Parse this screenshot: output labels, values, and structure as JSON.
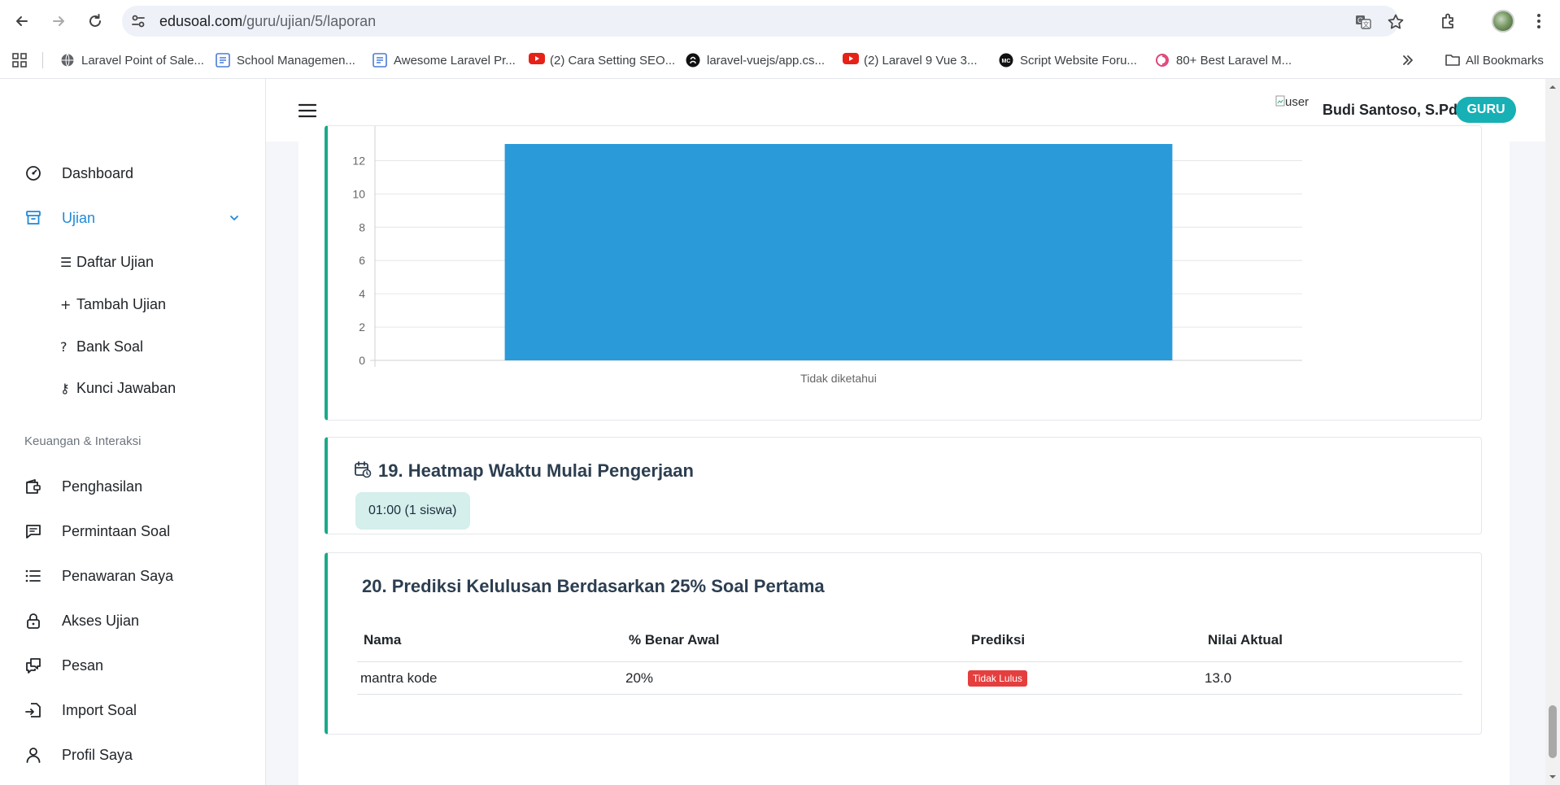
{
  "browser": {
    "url_host": "edusoal.com",
    "url_path": "/guru/ujian/5/laporan",
    "bookmarks": [
      {
        "label": "Laravel Point of Sale...",
        "icon": "globe-icon",
        "color": "#5f6368"
      },
      {
        "label": "School Managemen...",
        "icon": "app-icon",
        "color": "#4a7bd8"
      },
      {
        "label": "Awesome Laravel Pr...",
        "icon": "app-icon",
        "color": "#4a7bd8"
      },
      {
        "label": "(2) Cara Setting SEO...",
        "icon": "youtube-icon",
        "color": "#e62117"
      },
      {
        "label": "laravel-vuejs/app.cs...",
        "icon": "github-icon",
        "color": "#111111"
      },
      {
        "label": "(2) Laravel 9 Vue 3...",
        "icon": "youtube-icon",
        "color": "#e62117"
      },
      {
        "label": "Script Website Foru...",
        "icon": "mc-icon",
        "color": "#111111"
      },
      {
        "label": "80+ Best Laravel M...",
        "icon": "swirl-icon",
        "color": "#e0457b"
      }
    ],
    "all_bookmarks_label": "All Bookmarks"
  },
  "sidebar": {
    "items": [
      {
        "label": "Dashboard",
        "icon": "gauge-icon"
      },
      {
        "label": "Ujian",
        "icon": "archive-icon"
      }
    ],
    "sub_items": [
      {
        "label": "Daftar Ujian",
        "glyph": "☰"
      },
      {
        "label": "Tambah Ujian",
        "glyph": "+"
      },
      {
        "label": "Bank Soal",
        "glyph": "?"
      },
      {
        "label": "Kunci Jawaban",
        "glyph": "⚷"
      }
    ],
    "section_heading": "Keuangan & Interaksi",
    "section_items": [
      {
        "label": "Penghasilan",
        "icon": "wallet-icon"
      },
      {
        "label": "Permintaan Soal",
        "icon": "chat-icon"
      },
      {
        "label": "Penawaran Saya",
        "icon": "list-icon"
      },
      {
        "label": "Akses Ujian",
        "icon": "lock-icon"
      },
      {
        "label": "Pesan",
        "icon": "messages-icon"
      },
      {
        "label": "Import Soal",
        "icon": "import-icon"
      },
      {
        "label": "Profil Saya",
        "icon": "user-icon"
      }
    ]
  },
  "header": {
    "avatar_alt": "user",
    "user_name": "Budi Santoso, S.Pd",
    "role_badge": "GURU"
  },
  "chart_data": {
    "type": "bar",
    "categories": [
      "Tidak diketahui"
    ],
    "values": [
      13
    ],
    "ylim": [
      0,
      13
    ],
    "yticks": [
      0,
      2,
      4,
      6,
      8,
      10,
      12
    ],
    "grid": true,
    "bar_color": "#2a9ad9"
  },
  "heatmap": {
    "title": "19. Heatmap Waktu Mulai Pengerjaan",
    "chips": [
      "01:00 (1 siswa)"
    ]
  },
  "prediction": {
    "title": "20. Prediksi Kelulusan Berdasarkan 25% Soal Pertama",
    "columns": [
      "Nama",
      "% Benar Awal",
      "Prediksi",
      "Nilai Aktual"
    ],
    "rows": [
      {
        "nama": "mantra kode",
        "benar": "20%",
        "prediksi": "Tidak Lulus",
        "nilai": "13.0"
      }
    ]
  }
}
